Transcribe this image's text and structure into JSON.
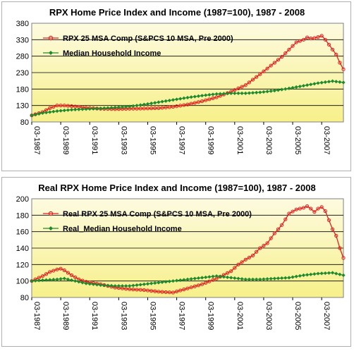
{
  "chart_data": [
    {
      "type": "line",
      "title": "RPX Home Price Index and Income (1987=100), 1987 - 2008",
      "xlabel": "",
      "ylabel": "",
      "ylim": [
        80,
        380
      ],
      "yticks": [
        80,
        130,
        180,
        230,
        280,
        330,
        380
      ],
      "xlim": [
        1987.25,
        2008.75
      ],
      "xticks": [
        "03-1987",
        "03-1989",
        "03-1991",
        "03-1993",
        "03-1995",
        "03-1997",
        "03-1999",
        "03-2001",
        "03-2003",
        "03-2005",
        "03-2007"
      ],
      "grid": true,
      "legend": "top-left",
      "plot_bg": [
        "#fdfbe0",
        "#f7f08a"
      ],
      "series": [
        {
          "name": "RPX 25 MSA Comp (S&PCS 10 MSA, Pre 2000)",
          "color": "#e02020",
          "marker": "open-circle",
          "points": [
            [
              1987.25,
              100
            ],
            [
              1988.0,
              110
            ],
            [
              1988.5,
              122
            ],
            [
              1989.0,
              130
            ],
            [
              1989.5,
              130
            ],
            [
              1990.0,
              128
            ],
            [
              1990.5,
              126
            ],
            [
              1991.0,
              123
            ],
            [
              1992.0,
              120
            ],
            [
              1993.0,
              119
            ],
            [
              1994.0,
              120
            ],
            [
              1995.0,
              121
            ],
            [
              1996.0,
              122
            ],
            [
              1997.0,
              126
            ],
            [
              1998.0,
              133
            ],
            [
              1999.0,
              143
            ],
            [
              2000.0,
              155
            ],
            [
              2001.0,
              172
            ],
            [
              2001.5,
              182
            ],
            [
              2002.0,
              192
            ],
            [
              2003.0,
              225
            ],
            [
              2004.0,
              260
            ],
            [
              2004.5,
              278
            ],
            [
              2005.0,
              300
            ],
            [
              2005.5,
              322
            ],
            [
              2006.0,
              330
            ],
            [
              2006.25,
              337
            ],
            [
              2006.5,
              334
            ],
            [
              2006.75,
              335
            ],
            [
              2007.0,
              338
            ],
            [
              2007.25,
              342
            ],
            [
              2007.5,
              330
            ],
            [
              2008.0,
              300
            ],
            [
              2008.25,
              285
            ],
            [
              2008.5,
              260
            ],
            [
              2008.75,
              240
            ]
          ]
        },
        {
          "name": "Median Household Income",
          "color": "#1e8a2e",
          "marker": "diamond",
          "points": [
            [
              1987.25,
              100
            ],
            [
              1988.0,
              107
            ],
            [
              1989.0,
              113
            ],
            [
              1990.0,
              117
            ],
            [
              1991.0,
              119
            ],
            [
              1992.0,
              121
            ],
            [
              1993.0,
              124
            ],
            [
              1994.0,
              127
            ],
            [
              1995.0,
              133
            ],
            [
              1996.0,
              140
            ],
            [
              1997.0,
              147
            ],
            [
              1998.0,
              154
            ],
            [
              1999.0,
              160
            ],
            [
              2000.0,
              165
            ],
            [
              2001.0,
              167
            ],
            [
              2002.0,
              167
            ],
            [
              2003.0,
              170
            ],
            [
              2004.0,
              175
            ],
            [
              2005.0,
              182
            ],
            [
              2006.0,
              190
            ],
            [
              2007.0,
              198
            ],
            [
              2008.0,
              204
            ],
            [
              2008.75,
              200
            ]
          ]
        }
      ]
    },
    {
      "type": "line",
      "title": "Real RPX Home Price Index and Income (1987=100), 1987 - 2008",
      "xlabel": "",
      "ylabel": "",
      "ylim": [
        80,
        200
      ],
      "yticks": [
        80,
        100,
        120,
        140,
        160,
        180,
        200
      ],
      "xlim": [
        1987.25,
        2008.75
      ],
      "xticks": [
        "03-1987",
        "03-1989",
        "03-1991",
        "03-1993",
        "03-1995",
        "03-1997",
        "03-1999",
        "03-2001",
        "03-2003",
        "03-2005",
        "03-2007"
      ],
      "grid": true,
      "legend": "top-left",
      "plot_bg": [
        "#fdfbe0",
        "#f7f08a"
      ],
      "series": [
        {
          "name": "Real RPX 25 MSA Comp (S&PCS 10 MSA, Pre 2000)",
          "color": "#e02020",
          "marker": "open-circle",
          "points": [
            [
              1987.25,
              100
            ],
            [
              1988.0,
              106
            ],
            [
              1988.5,
              111
            ],
            [
              1989.0,
              114
            ],
            [
              1989.25,
              115
            ],
            [
              1989.5,
              113
            ],
            [
              1990.0,
              107
            ],
            [
              1990.5,
              102
            ],
            [
              1991.0,
              99
            ],
            [
              1992.0,
              96
            ],
            [
              1993.0,
              92
            ],
            [
              1994.0,
              90
            ],
            [
              1995.0,
              89
            ],
            [
              1996.0,
              87
            ],
            [
              1997.0,
              86
            ],
            [
              1998.0,
              91
            ],
            [
              1999.0,
              96
            ],
            [
              2000.0,
              103
            ],
            [
              2001.0,
              112
            ],
            [
              2001.5,
              120
            ],
            [
              2002.0,
              126
            ],
            [
              2002.5,
              131
            ],
            [
              2003.0,
              140
            ],
            [
              2003.5,
              146
            ],
            [
              2004.0,
              158
            ],
            [
              2004.5,
              168
            ],
            [
              2005.0,
              182
            ],
            [
              2005.5,
              187
            ],
            [
              2006.0,
              189
            ],
            [
              2006.25,
              191
            ],
            [
              2006.5,
              188
            ],
            [
              2006.75,
              184
            ],
            [
              2007.0,
              188
            ],
            [
              2007.25,
              190
            ],
            [
              2007.5,
              185
            ],
            [
              2008.0,
              163
            ],
            [
              2008.25,
              155
            ],
            [
              2008.5,
              140
            ],
            [
              2008.75,
              128
            ]
          ]
        },
        {
          "name": "Real_Median Household Income",
          "color": "#1e8a2e",
          "marker": "diamond",
          "points": [
            [
              1987.25,
              100
            ],
            [
              1988.0,
              101
            ],
            [
              1989.0,
              102
            ],
            [
              1989.5,
              103
            ],
            [
              1990.0,
              101
            ],
            [
              1991.0,
              97
            ],
            [
              1992.0,
              95
            ],
            [
              1993.0,
              94
            ],
            [
              1994.0,
              94
            ],
            [
              1995.0,
              96
            ],
            [
              1996.0,
              98
            ],
            [
              1997.0,
              100
            ],
            [
              1998.0,
              102
            ],
            [
              1999.0,
              104
            ],
            [
              2000.0,
              106
            ],
            [
              2001.0,
              104
            ],
            [
              2002.0,
              102
            ],
            [
              2003.0,
              102
            ],
            [
              2004.0,
              103
            ],
            [
              2005.0,
              104
            ],
            [
              2006.0,
              107
            ],
            [
              2007.0,
              109
            ],
            [
              2008.0,
              110
            ],
            [
              2008.75,
              107
            ]
          ]
        }
      ]
    }
  ]
}
